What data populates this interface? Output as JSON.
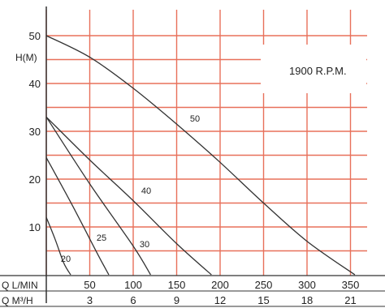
{
  "chart_data": {
    "type": "line",
    "title": "",
    "speed_label": "1900 R.P.M.",
    "ylabel": "H(M)",
    "xlabel_primary": "Q L/MIN",
    "xlabel_secondary": "Q M³/H",
    "ylim": [
      0,
      52
    ],
    "xlim": [
      0,
      375
    ],
    "y_ticks": [
      10,
      20,
      30,
      40,
      50
    ],
    "x_ticks": [
      50,
      100,
      150,
      200,
      250,
      300,
      350
    ],
    "x_ticks_secondary": [
      "3",
      "6",
      "9",
      "12",
      "15",
      "18",
      "21"
    ],
    "grid": true,
    "grid_color": "#e8705a",
    "background_color": "#ffffff",
    "curve_color": "#333333",
    "series": [
      {
        "name": "50",
        "x": [
          0,
          50,
          100,
          150,
          200,
          250,
          300,
          355
        ],
        "y": [
          50,
          45.5,
          39,
          31.5,
          23.5,
          15,
          7,
          0
        ]
      },
      {
        "name": "40",
        "x": [
          0,
          50,
          100,
          150,
          190
        ],
        "y": [
          33,
          24,
          15.5,
          6.5,
          0
        ]
      },
      {
        "name": "30",
        "x": [
          0,
          50,
          100,
          120
        ],
        "y": [
          33,
          19,
          6,
          0
        ]
      },
      {
        "name": "25",
        "x": [
          0,
          30,
          60,
          72
        ],
        "y": [
          24.5,
          14.5,
          4,
          0
        ]
      },
      {
        "name": "20",
        "x": [
          0,
          10,
          20,
          28
        ],
        "y": [
          12,
          7.5,
          2.5,
          0
        ]
      }
    ]
  }
}
